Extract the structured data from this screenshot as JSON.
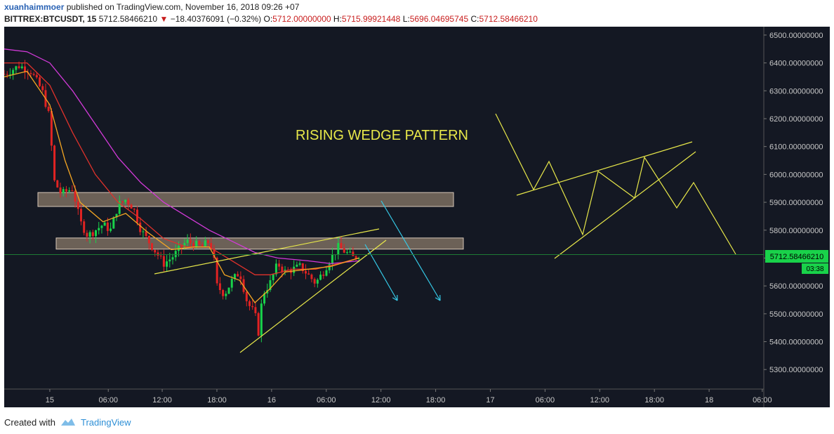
{
  "header": {
    "author": "xuanhaimmoer",
    "published_text": " published on TradingView.com, November 16, 2018 09:26 +07",
    "symbol": "BITTREX:BTCUSDT, 15",
    "last": "5712.58466210",
    "change": "−18.40376091 (−0.32%)",
    "o_label": "O:",
    "o_value": "5712.00000000",
    "h_label": "H:",
    "h_value": "5715.99921448",
    "l_label": "L:",
    "l_value": "5696.04695745",
    "c_label": "C:",
    "c_value": "5712.58466210"
  },
  "footer": {
    "created_with": "Created with",
    "brand": "TradingView"
  },
  "colors": {
    "background": "#141823",
    "up": "#19d24a",
    "down": "#e12323",
    "ema_fast": "#f5a623",
    "ema_mid": "#e0322b",
    "ema_slow": "#d33ad9",
    "drawing": "#e8e84a",
    "arrow": "#35c9e6",
    "zone": "#8a7a6a",
    "price_tag": "#19d24a"
  },
  "annotation": "RISING WEDGE PATTERN",
  "price_tag": {
    "price": "5712.58466210",
    "countdown": "03:38"
  },
  "chart_data": {
    "type": "line",
    "chart_style": "candlestick",
    "ylim": [
      5230,
      6530
    ],
    "y_ticks": [
      "6500.00000000",
      "6400.00000000",
      "6300.00000000",
      "6200.00000000",
      "6100.00000000",
      "6000.00000000",
      "5900.00000000",
      "5800.00000000",
      "5700.00000000",
      "5600.00000000",
      "5500.00000000",
      "5400.00000000",
      "5300.00000000"
    ],
    "y_tick_values": [
      6500,
      6400,
      6300,
      6200,
      6100,
      6000,
      5900,
      5800,
      5700,
      5600,
      5500,
      5400,
      5300
    ],
    "x_ticks": [
      {
        "label": "15",
        "pos": 0.06
      },
      {
        "label": "06:00",
        "pos": 0.137
      },
      {
        "label": "12:00",
        "pos": 0.208
      },
      {
        "label": "18:00",
        "pos": 0.28
      },
      {
        "label": "16",
        "pos": 0.352
      },
      {
        "label": "06:00",
        "pos": 0.424
      },
      {
        "label": "12:00",
        "pos": 0.496
      },
      {
        "label": "18:00",
        "pos": 0.568
      },
      {
        "label": "17",
        "pos": 0.64
      },
      {
        "label": "06:00",
        "pos": 0.712
      },
      {
        "label": "12:00",
        "pos": 0.784
      },
      {
        "label": "18:00",
        "pos": 0.856
      },
      {
        "label": "18",
        "pos": 0.928
      },
      {
        "label": "06:00",
        "pos": 0.998
      }
    ],
    "price_path": [
      [
        0.0,
        6360
      ],
      [
        0.02,
        6390
      ],
      [
        0.035,
        6370
      ],
      [
        0.05,
        6300
      ],
      [
        0.06,
        6200
      ],
      [
        0.065,
        5980
      ],
      [
        0.075,
        5930
      ],
      [
        0.09,
        5950
      ],
      [
        0.1,
        5830
      ],
      [
        0.11,
        5780
      ],
      [
        0.12,
        5800
      ],
      [
        0.13,
        5820
      ],
      [
        0.14,
        5800
      ],
      [
        0.15,
        5890
      ],
      [
        0.16,
        5910
      ],
      [
        0.17,
        5880
      ],
      [
        0.18,
        5800
      ],
      [
        0.19,
        5760
      ],
      [
        0.2,
        5720
      ],
      [
        0.21,
        5680
      ],
      [
        0.22,
        5700
      ],
      [
        0.23,
        5730
      ],
      [
        0.24,
        5760
      ],
      [
        0.25,
        5750
      ],
      [
        0.26,
        5740
      ],
      [
        0.27,
        5760
      ],
      [
        0.275,
        5720
      ],
      [
        0.28,
        5600
      ],
      [
        0.29,
        5570
      ],
      [
        0.3,
        5620
      ],
      [
        0.31,
        5650
      ],
      [
        0.32,
        5540
      ],
      [
        0.33,
        5500
      ],
      [
        0.335,
        5430
      ],
      [
        0.34,
        5570
      ],
      [
        0.35,
        5610
      ],
      [
        0.36,
        5680
      ],
      [
        0.37,
        5650
      ],
      [
        0.38,
        5660
      ],
      [
        0.39,
        5670
      ],
      [
        0.4,
        5640
      ],
      [
        0.41,
        5610
      ],
      [
        0.42,
        5650
      ],
      [
        0.43,
        5700
      ],
      [
        0.44,
        5740
      ],
      [
        0.45,
        5720
      ],
      [
        0.46,
        5700
      ],
      [
        0.467,
        5712
      ]
    ],
    "ema_fast": [
      [
        0.0,
        6350
      ],
      [
        0.03,
        6370
      ],
      [
        0.06,
        6250
      ],
      [
        0.08,
        6050
      ],
      [
        0.1,
        5900
      ],
      [
        0.13,
        5830
      ],
      [
        0.16,
        5860
      ],
      [
        0.19,
        5790
      ],
      [
        0.22,
        5730
      ],
      [
        0.25,
        5740
      ],
      [
        0.27,
        5740
      ],
      [
        0.29,
        5640
      ],
      [
        0.31,
        5620
      ],
      [
        0.33,
        5540
      ],
      [
        0.35,
        5590
      ],
      [
        0.37,
        5650
      ],
      [
        0.4,
        5660
      ],
      [
        0.43,
        5670
      ],
      [
        0.467,
        5700
      ]
    ],
    "ema_mid": [
      [
        0.0,
        6400
      ],
      [
        0.03,
        6400
      ],
      [
        0.06,
        6320
      ],
      [
        0.09,
        6150
      ],
      [
        0.12,
        6000
      ],
      [
        0.15,
        5900
      ],
      [
        0.18,
        5840
      ],
      [
        0.21,
        5770
      ],
      [
        0.24,
        5740
      ],
      [
        0.27,
        5740
      ],
      [
        0.3,
        5690
      ],
      [
        0.33,
        5640
      ],
      [
        0.35,
        5640
      ],
      [
        0.38,
        5660
      ],
      [
        0.41,
        5660
      ],
      [
        0.44,
        5680
      ],
      [
        0.467,
        5700
      ]
    ],
    "ema_slow": [
      [
        0.0,
        6450
      ],
      [
        0.03,
        6440
      ],
      [
        0.06,
        6400
      ],
      [
        0.09,
        6300
      ],
      [
        0.12,
        6180
      ],
      [
        0.15,
        6060
      ],
      [
        0.18,
        5970
      ],
      [
        0.21,
        5900
      ],
      [
        0.24,
        5850
      ],
      [
        0.27,
        5800
      ],
      [
        0.3,
        5760
      ],
      [
        0.33,
        5720
      ],
      [
        0.36,
        5700
      ],
      [
        0.4,
        5690
      ],
      [
        0.43,
        5680
      ],
      [
        0.467,
        5690
      ]
    ]
  }
}
